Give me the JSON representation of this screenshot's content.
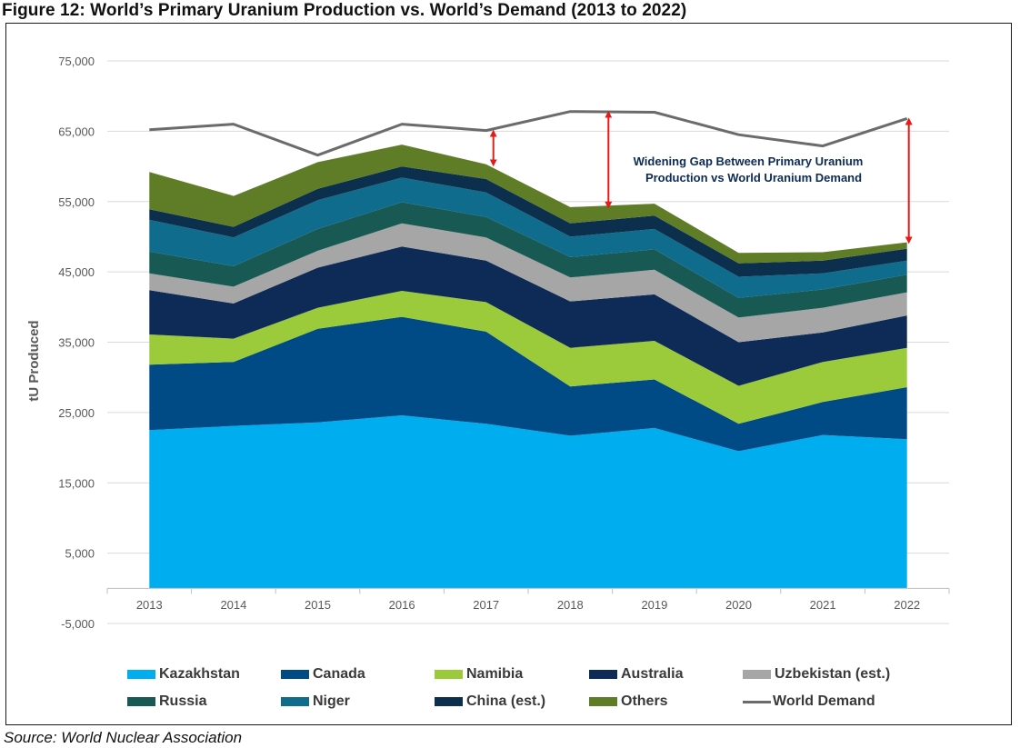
{
  "figure": {
    "title": "Figure 12: World’s Primary Uranium Production vs. World’s Demand (2013 to 2022)",
    "source": "Source: World Nuclear Association"
  },
  "chart_data": {
    "type": "area",
    "stacked": true,
    "ylabel": "tU Produced",
    "xlabel": "",
    "ylim": [
      -5000,
      75000
    ],
    "yticks": [
      -5000,
      5000,
      15000,
      25000,
      35000,
      45000,
      55000,
      65000,
      75000
    ],
    "ytick_labels": [
      "-5,000",
      "5,000",
      "15,000",
      "25,000",
      "35,000",
      "45,000",
      "55,000",
      "65,000",
      "75,000"
    ],
    "categories": [
      "2013",
      "2014",
      "2015",
      "2016",
      "2017",
      "2018",
      "2019",
      "2020",
      "2021",
      "2022"
    ],
    "grid": true,
    "legend_position": "bottom",
    "series": [
      {
        "name": "Kazakhstan",
        "color": "#00AEEF",
        "values": [
          22500,
          23100,
          23600,
          24600,
          23400,
          21700,
          22800,
          19500,
          21800,
          21200
        ]
      },
      {
        "name": "Canada",
        "color": "#004A86",
        "values": [
          9300,
          9100,
          13300,
          14000,
          13100,
          7000,
          6900,
          3900,
          4700,
          7400
        ]
      },
      {
        "name": "Namibia",
        "color": "#9BCB3B",
        "values": [
          4300,
          3300,
          3000,
          3700,
          4200,
          5500,
          5500,
          5400,
          5700,
          5600
        ]
      },
      {
        "name": "Australia",
        "color": "#0D2B56",
        "values": [
          6300,
          5000,
          5700,
          6300,
          5900,
          6600,
          6600,
          6200,
          4200,
          4600
        ]
      },
      {
        "name": "Uzbekistan (est.)",
        "color": "#A6A6A6",
        "values": [
          2400,
          2400,
          2400,
          3300,
          3300,
          3400,
          3500,
          3500,
          3500,
          3300
        ]
      },
      {
        "name": "Russia",
        "color": "#185953",
        "values": [
          3100,
          2900,
          3100,
          3000,
          2900,
          2900,
          2900,
          2800,
          2600,
          2500
        ]
      },
      {
        "name": "Niger",
        "color": "#0F6C8C",
        "values": [
          4500,
          4100,
          4100,
          3500,
          3500,
          2900,
          2900,
          3000,
          2300,
          2000
        ]
      },
      {
        "name": "China (est.)",
        "color": "#0B2F4C",
        "values": [
          1500,
          1500,
          1600,
          1600,
          1900,
          1900,
          1900,
          1900,
          1800,
          1700
        ]
      },
      {
        "name": "Others",
        "color": "#5F7C26",
        "values": [
          5300,
          4400,
          3800,
          3100,
          2100,
          2300,
          1700,
          1500,
          1200,
          900
        ]
      }
    ],
    "line_series": [
      {
        "name": "World Demand",
        "color": "#6B6B6B",
        "values": [
          65200,
          66000,
          61600,
          66000,
          65100,
          67800,
          67700,
          64500,
          62900,
          66800
        ]
      }
    ],
    "annotation": {
      "text_line1": "Widening Gap Between Primary Uranium",
      "text_line2": "Production vs World Uranium Demand",
      "color": "#0D2B56",
      "arrow_color": "#E41B17",
      "arrows": [
        {
          "x": "2017",
          "from": 60100,
          "to": 65100
        },
        {
          "x": "2018",
          "from": 54100,
          "to": 67800
        },
        {
          "x": "2022",
          "from": 49100,
          "to": 66800
        }
      ]
    }
  },
  "legend": {
    "items": [
      {
        "label": "Kazakhstan",
        "color": "#00AEEF",
        "kind": "area"
      },
      {
        "label": "Canada",
        "color": "#004A86",
        "kind": "area"
      },
      {
        "label": "Namibia",
        "color": "#9BCB3B",
        "kind": "area"
      },
      {
        "label": "Australia",
        "color": "#0D2B56",
        "kind": "area"
      },
      {
        "label": "Uzbekistan (est.)",
        "color": "#A6A6A6",
        "kind": "area"
      },
      {
        "label": "Russia",
        "color": "#185953",
        "kind": "area"
      },
      {
        "label": "Niger",
        "color": "#0F6C8C",
        "kind": "area"
      },
      {
        "label": "China (est.)",
        "color": "#0B2F4C",
        "kind": "area"
      },
      {
        "label": "Others",
        "color": "#5F7C26",
        "kind": "area"
      },
      {
        "label": "World Demand",
        "color": "#6B6B6B",
        "kind": "line"
      }
    ]
  }
}
